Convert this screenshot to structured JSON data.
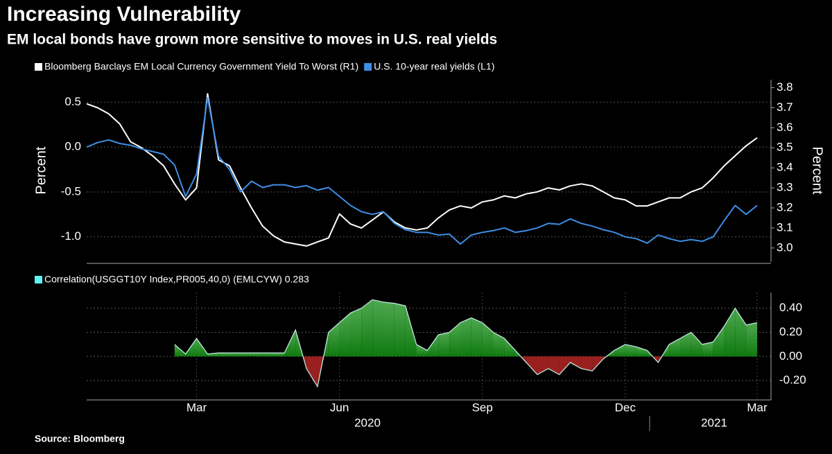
{
  "title": "Increasing Vulnerability",
  "subtitle": "EM local bonds have grown more sensitive to moves in U.S. real yields",
  "source": "Source: Bloomberg",
  "chart_data": [
    {
      "type": "line",
      "ylabel": "Percent",
      "y2label": "Percent",
      "ylim": [
        -1.28,
        0.75
      ],
      "yticks": [
        {
          "value": -1,
          "label": "-1.0"
        },
        {
          "value": -0.5,
          "label": "-0.5"
        },
        {
          "value": 0,
          "label": "0.0"
        },
        {
          "value": 0.5,
          "label": "0.5"
        }
      ],
      "y2lim": [
        2.93,
        3.84
      ],
      "y2ticks": [
        {
          "value": 3,
          "label": "3.0"
        },
        3.1,
        3.2,
        3.3,
        3.4,
        3.5,
        3.6,
        3.7,
        3.8
      ],
      "series": [
        {
          "name": "Bloomberg Barclays EM Local Currency Government Yield To Worst (R1)",
          "color": "#ffffff",
          "axis": "y2",
          "values": [
            3.72,
            3.7,
            3.67,
            3.62,
            3.53,
            3.5,
            3.46,
            3.41,
            3.32,
            3.24,
            3.3,
            3.77,
            3.44,
            3.41,
            3.3,
            3.2,
            3.11,
            3.06,
            3.03,
            3.02,
            3.01,
            3.03,
            3.05,
            3.17,
            3.12,
            3.1,
            3.14,
            3.18,
            3.13,
            3.1,
            3.09,
            3.1,
            3.15,
            3.19,
            3.21,
            3.2,
            3.23,
            3.24,
            3.26,
            3.25,
            3.27,
            3.28,
            3.3,
            3.29,
            3.31,
            3.32,
            3.31,
            3.28,
            3.25,
            3.24,
            3.21,
            3.21,
            3.23,
            3.25,
            3.25,
            3.28,
            3.3,
            3.35,
            3.41,
            3.46,
            3.51,
            3.55
          ]
        },
        {
          "name": "U.S. 10-year real yields (L1)",
          "color": "#3d8ee6",
          "values": [
            0.0,
            0.05,
            0.08,
            0.04,
            0.02,
            -0.02,
            -0.05,
            -0.08,
            -0.2,
            -0.55,
            -0.3,
            0.55,
            -0.1,
            -0.25,
            -0.5,
            -0.38,
            -0.45,
            -0.42,
            -0.42,
            -0.45,
            -0.43,
            -0.48,
            -0.45,
            -0.55,
            -0.65,
            -0.72,
            -0.75,
            -0.72,
            -0.85,
            -0.92,
            -0.95,
            -0.95,
            -0.98,
            -0.97,
            -1.08,
            -0.98,
            -0.95,
            -0.93,
            -0.9,
            -0.95,
            -0.93,
            -0.9,
            -0.85,
            -0.86,
            -0.8,
            -0.85,
            -0.88,
            -0.92,
            -0.95,
            -1.0,
            -1.02,
            -1.07,
            -0.98,
            -1.02,
            -1.05,
            -1.03,
            -1.05,
            -1.0,
            -0.82,
            -0.65,
            -0.75,
            -0.65
          ]
        }
      ]
    },
    {
      "type": "area",
      "categories": [
        null,
        null,
        null,
        null,
        null,
        null,
        null,
        null,
        null,
        null,
        "Mar",
        null,
        null,
        null,
        null,
        null,
        null,
        null,
        null,
        null,
        null,
        null,
        null,
        "Jun",
        null,
        null,
        null,
        null,
        null,
        null,
        null,
        null,
        null,
        null,
        null,
        null,
        "Sep",
        null,
        null,
        null,
        null,
        null,
        null,
        null,
        null,
        null,
        null,
        null,
        null,
        "Dec",
        null,
        null,
        null,
        null,
        null,
        null,
        null,
        null,
        null,
        null,
        null,
        "Mar"
      ],
      "x_group_labels": [
        "2020",
        "2021"
      ],
      "ylim": [
        -0.36,
        0.53
      ],
      "yticks": [
        {
          "value": -0.2,
          "label": "-0.20"
        },
        {
          "value": 0,
          "label": "0.00"
        },
        {
          "value": 0.2,
          "label": "0.20"
        },
        {
          "value": 0.4,
          "label": "0.40"
        }
      ],
      "series": [
        {
          "name": "Correlation(USGGT10Y Index,PR005,40,0) (EMLCYW) 0.283",
          "color": "#5ef2f2",
          "values": [
            null,
            null,
            null,
            null,
            null,
            null,
            null,
            null,
            0.1,
            0.02,
            0.15,
            0.02,
            0.03,
            0.03,
            0.03,
            0.03,
            0.03,
            0.03,
            0.03,
            0.22,
            -0.1,
            -0.25,
            0.2,
            0.28,
            0.36,
            0.4,
            0.47,
            0.45,
            0.44,
            0.42,
            0.1,
            0.05,
            0.18,
            0.2,
            0.28,
            0.32,
            0.28,
            0.2,
            0.15,
            0.05,
            -0.05,
            -0.15,
            -0.1,
            -0.15,
            -0.05,
            -0.1,
            -0.12,
            -0.02,
            0.05,
            0.1,
            0.08,
            0.05,
            -0.05,
            0.1,
            0.15,
            0.2,
            0.1,
            0.12,
            0.25,
            0.4,
            0.26,
            0.28
          ]
        }
      ]
    }
  ]
}
